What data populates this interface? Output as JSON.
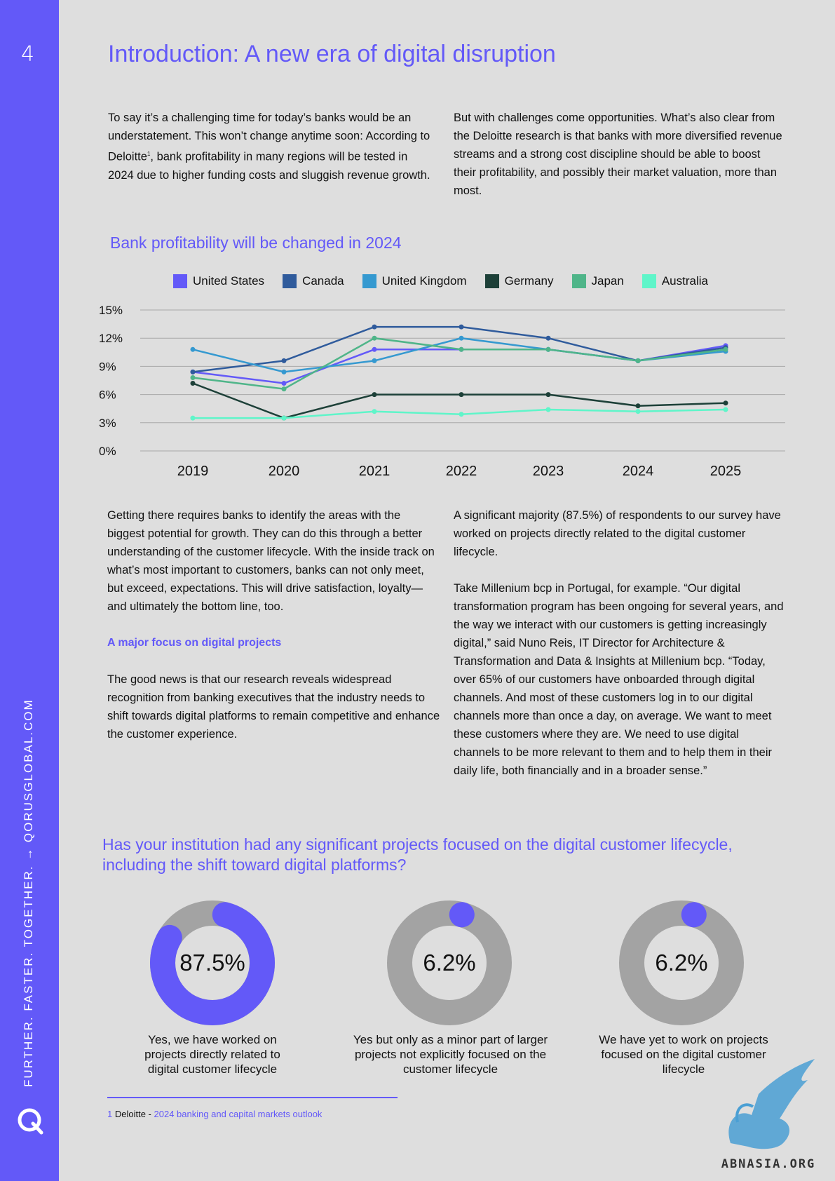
{
  "page": {
    "number": "4"
  },
  "sidebar": {
    "vertical_text": "FURTHER. FASTER. TOGETHER.   → QORUSGLOBAL.COM"
  },
  "title": "Introduction: A new era of digital disruption",
  "intro": {
    "left_pre": "To say it’s a challenging time for today’s banks would be an understatement. This won’t change anytime soon: According to Deloitte",
    "left_sup": "1",
    "left_post": ", bank profitability in many regions will be tested in 2024 due to higher funding costs and sluggish revenue growth.",
    "right": "But with challenges come opportunities. What’s also clear from the Deloitte research is that banks with more diversified revenue streams and a strong cost discipline should be able to boost their profitability, and possibly their market valuation, more than most."
  },
  "chart_data": {
    "type": "line",
    "title": "Bank profitability will be changed in 2024",
    "categories": [
      "2019",
      "2020",
      "2021",
      "2022",
      "2023",
      "2024",
      "2025"
    ],
    "y_ticks": [
      "0%",
      "3%",
      "6%",
      "9%",
      "12%",
      "15%"
    ],
    "ylim": [
      0,
      15
    ],
    "grid": true,
    "legend_position": "top",
    "series": [
      {
        "name": "United States",
        "color": "#6359f8",
        "values": [
          8.4,
          7.2,
          10.8,
          10.8,
          10.8,
          9.6,
          11.2
        ]
      },
      {
        "name": "Canada",
        "color": "#2f5b9c",
        "values": [
          8.4,
          9.6,
          13.2,
          13.2,
          12.0,
          9.6,
          11.0
        ]
      },
      {
        "name": "United Kingdom",
        "color": "#3599d0",
        "values": [
          10.8,
          8.4,
          9.6,
          12.0,
          10.8,
          9.6,
          10.6
        ]
      },
      {
        "name": "Germany",
        "color": "#1d4038",
        "values": [
          7.2,
          3.5,
          6.0,
          6.0,
          6.0,
          4.8,
          5.1
        ]
      },
      {
        "name": "Japan",
        "color": "#4fb589",
        "values": [
          7.8,
          6.6,
          12.0,
          10.8,
          10.8,
          9.6,
          10.8
        ]
      },
      {
        "name": "Australia",
        "color": "#5ff5c9",
        "values": [
          3.5,
          3.5,
          4.2,
          3.9,
          4.4,
          4.2,
          4.4
        ]
      }
    ]
  },
  "body": {
    "left_p1": "Getting there requires banks to identify the areas with the biggest potential for growth. They can do this through a better understanding of the customer lifecycle. With the inside track on what’s most important to customers, banks can not only meet, but exceed, expectations. This will drive satisfaction, loyalty—and ultimately the bottom line, too.",
    "subheading": "A major focus on digital projects",
    "left_p2": "The good news is that our research reveals widespread recognition from banking executives that the industry needs to shift towards digital platforms to remain competitive and enhance the customer experience.",
    "right_p1": "A significant majority (87.5%) of respondents to our survey have worked on projects directly related to the digital customer lifecycle.",
    "right_p2": "Take Millenium bcp in Portugal, for example. “Our digital transformation program has been ongoing for several years, and the way we interact with our customers is getting increasingly digital,” said Nuno Reis, IT Director for Architecture & Transformation and Data & Insights at Millenium bcp. “Today, over 65% of our customers have onboarded through digital channels. And most of these customers log in to our digital channels more than once a day, on average. We want to meet these customers where they are. We need to use digital channels to be more relevant to them and to help them in their daily life, both financially and in a broader sense.”"
  },
  "survey": {
    "question": "Has your institution had any significant projects focused on the digital customer lifecycle, including the shift toward digital platforms?",
    "results": [
      {
        "value_label": "87.5%",
        "value": 87.5,
        "caption": "Yes, we have worked on projects directly related to digital customer lifecycle"
      },
      {
        "value_label": "6.2%",
        "value": 6.2,
        "caption": "Yes but only as a minor part of larger projects not explicitly focused on the customer lifecycle"
      },
      {
        "value_label": "6.2%",
        "value": 6.2,
        "caption": "We have yet to work on projects focused on the digital customer lifecycle"
      }
    ],
    "colors": {
      "fill": "#6359f8",
      "track": "#a3a3a3"
    }
  },
  "footnote": {
    "num": "1",
    "org": "Deloitte",
    "sep": " - ",
    "source": "2024 banking and capital markets outlook"
  },
  "watermark": {
    "text": "ABNASIA.ORG"
  },
  "colors": {
    "accent": "#6359f8",
    "background": "#dedede"
  }
}
